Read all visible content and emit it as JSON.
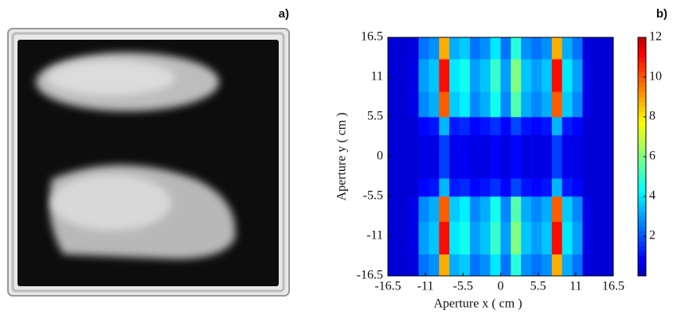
{
  "panel_a_label": "a)",
  "chart_data": {
    "type": "heatmap",
    "panel_label": "b)",
    "xlabel": "Aperture x ( cm )",
    "ylabel": "Aperture y ( cm )",
    "xlim": [
      -16.5,
      16.5
    ],
    "ylim": [
      -16.5,
      16.5
    ],
    "xticks": [
      -16.5,
      -11,
      -5.5,
      0,
      5.5,
      11,
      16.5
    ],
    "yticks": [
      -16.5,
      -11,
      -5.5,
      0,
      5.5,
      11,
      16.5
    ],
    "colormap": "jet",
    "clim": [
      0,
      12
    ],
    "cticks": [
      2,
      4,
      6,
      8,
      10,
      12
    ],
    "xbins": [
      -16.5,
      -15,
      -13.5,
      -12,
      -10.5,
      -9,
      -7.5,
      -6,
      -4.5,
      -3,
      -1.5,
      0,
      1.5,
      3,
      4.5,
      6,
      7.5,
      9,
      10.5,
      12,
      13.5,
      15,
      16.5
    ],
    "ybins": [
      -16.5,
      -13.5,
      -9,
      -5.5,
      -3,
      3,
      5.5,
      9,
      13.5,
      16.5
    ],
    "z": [
      [
        0.3,
        0.3,
        0.4,
        2.4,
        2.8,
        8.8,
        3.2,
        3.6,
        2.4,
        2.8,
        4,
        2.4,
        4.8,
        2.8,
        2.4,
        2.8,
        8.8,
        3.2,
        2.4,
        0.4,
        0.3,
        0.3
      ],
      [
        0.3,
        0.3,
        0.5,
        3,
        3.5,
        11,
        4,
        4.5,
        3,
        3.5,
        5,
        3,
        6,
        3.5,
        3,
        3.5,
        11,
        4,
        3,
        0.5,
        0.3,
        0.3
      ],
      [
        0.3,
        0.3,
        0.5,
        2.7,
        3.2,
        9.9,
        3.6,
        4.1,
        2.7,
        3.2,
        4.5,
        2.7,
        5.4,
        3.2,
        2.7,
        3.2,
        9.9,
        3.6,
        2.7,
        0.5,
        0.3,
        0.3
      ],
      [
        0.3,
        0.3,
        0.3,
        0.9,
        1.1,
        3.3,
        1.2,
        1.4,
        0.9,
        1.1,
        1.5,
        0.9,
        1.8,
        1.1,
        0.9,
        1.1,
        3.3,
        1.2,
        0.9,
        0.3,
        0.3,
        0.3
      ],
      [
        0.3,
        0.3,
        0.3,
        0.5,
        0.5,
        1.7,
        0.6,
        0.7,
        0.5,
        0.5,
        0.8,
        0.5,
        0.9,
        0.5,
        0.5,
        0.5,
        1.7,
        0.6,
        0.5,
        0.3,
        0.3,
        0.3
      ],
      [
        0.3,
        0.3,
        0.3,
        0.9,
        1.1,
        3.3,
        1.2,
        1.4,
        0.9,
        1.1,
        1.5,
        0.9,
        1.8,
        1.1,
        0.9,
        1.1,
        3.3,
        1.2,
        0.9,
        0.3,
        0.3,
        0.3
      ],
      [
        0.3,
        0.3,
        0.5,
        2.7,
        3.2,
        9.9,
        3.6,
        4.1,
        2.7,
        3.2,
        4.5,
        2.7,
        5.4,
        3.2,
        2.7,
        3.2,
        9.9,
        3.6,
        2.7,
        0.5,
        0.3,
        0.3
      ],
      [
        0.3,
        0.3,
        0.5,
        3,
        3.5,
        11,
        4,
        4.5,
        3,
        3.5,
        5,
        3,
        6,
        3.5,
        3,
        3.5,
        11,
        4,
        3,
        0.5,
        0.3,
        0.3
      ],
      [
        0.3,
        0.3,
        0.4,
        2.4,
        2.8,
        8.8,
        3.2,
        3.6,
        2.4,
        2.8,
        4,
        2.4,
        4.8,
        2.8,
        2.4,
        2.8,
        8.8,
        3.2,
        2.4,
        0.4,
        0.3,
        0.3
      ]
    ]
  }
}
